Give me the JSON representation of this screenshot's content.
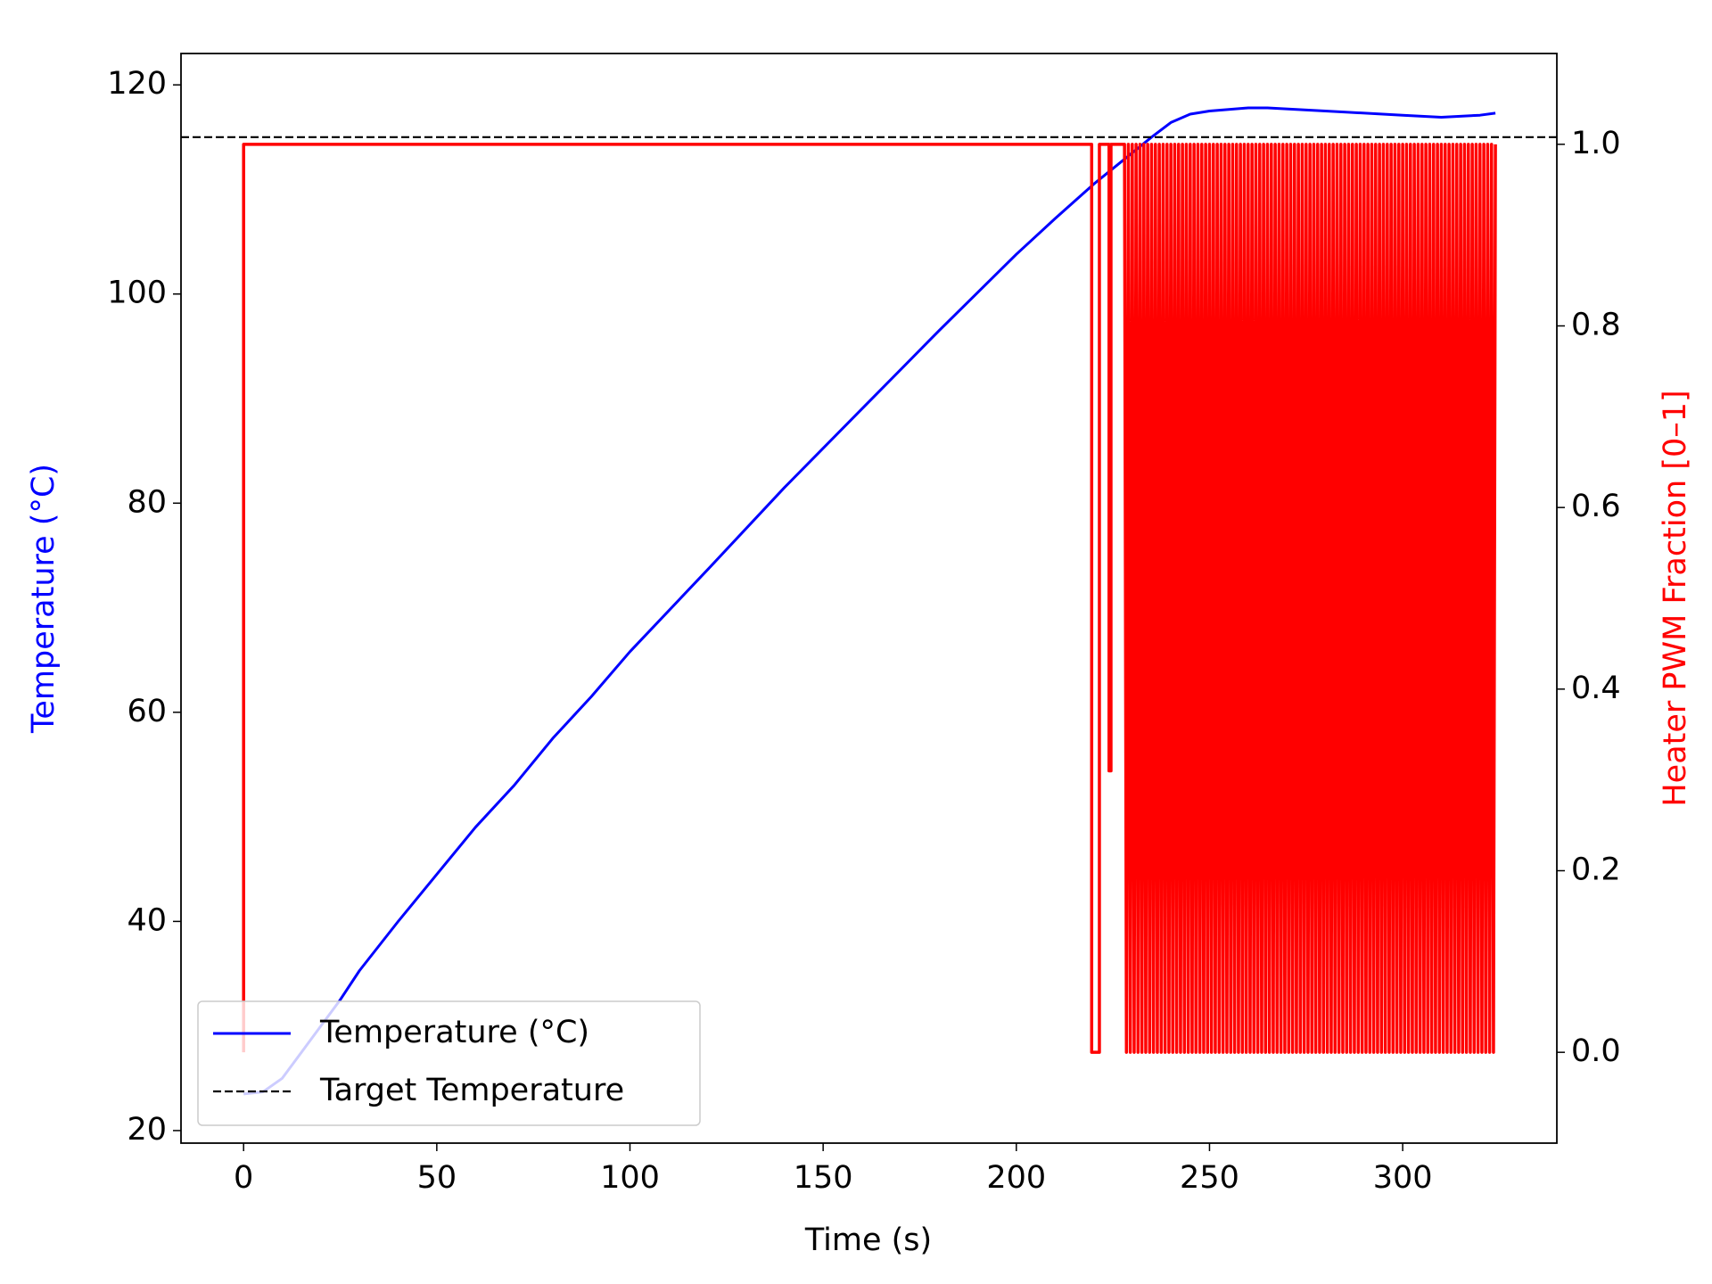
{
  "chart_data": {
    "type": "line",
    "xlabel": "Time (s)",
    "ylabel": "Temperature (°C)",
    "ylabel_color": "#0000ff",
    "y2label": "Heater PWM Fraction [0–1]",
    "y2label_color": "#ff0000",
    "xlim": [
      -16.2,
      339.9
    ],
    "ylim": [
      18.8,
      123.0
    ],
    "y2lim": [
      -0.1,
      1.1
    ],
    "xticks": [
      0,
      50,
      100,
      150,
      200,
      250,
      300
    ],
    "yticks": [
      20,
      40,
      60,
      80,
      100,
      120
    ],
    "y2ticks": [
      {
        "value": 0,
        "label": "0.0"
      },
      0.2,
      0.4,
      0.6,
      0.8,
      {
        "value": 1,
        "label": "1.0"
      }
    ],
    "legend": "lower left",
    "target": {
      "name": "Target Temperature",
      "value": 115,
      "color": "#000000",
      "linestyle": "dashed"
    },
    "series": [
      {
        "name": "Temperature (°C)",
        "color": "#0000ff",
        "x": [
          0,
          5,
          10,
          15,
          20,
          25,
          30,
          40,
          50,
          60,
          70,
          80,
          90,
          100,
          120,
          140,
          160,
          180,
          200,
          210,
          220,
          230,
          235,
          240,
          245,
          250,
          260,
          265,
          280,
          300,
          310,
          320,
          324
        ],
        "values": [
          23.5,
          23.7,
          25,
          27.5,
          30,
          32.5,
          35.3,
          40,
          44.5,
          49,
          53,
          57.5,
          61.5,
          65.8,
          73.6,
          81.5,
          89,
          96.5,
          103.8,
          107.2,
          110.5,
          113.5,
          115,
          116.4,
          117.2,
          117.5,
          117.8,
          117.8,
          117.5,
          117.1,
          116.9,
          117.1,
          117.3
        ]
      },
      {
        "color": "#ff0000",
        "axis": "y2",
        "x": [
          0,
          0,
          219.5,
          219.5,
          221.5,
          221.5,
          224,
          224,
          224.5,
          224.5,
          228,
          228.5,
          229,
          229.5,
          230,
          230.5,
          231,
          231.5,
          232,
          232.5,
          233,
          233.5,
          234,
          234.5,
          235,
          235.5,
          236,
          236.5,
          237,
          237.5,
          238,
          238.5,
          239,
          239.5,
          240,
          240.5,
          241,
          241.5,
          242,
          242.5,
          243,
          243.5,
          244,
          244.5,
          245,
          245.5,
          246,
          246.5,
          247,
          247.5,
          248,
          248.5,
          249,
          249.5,
          250,
          250.5,
          251,
          251.5,
          252,
          252.5,
          253,
          253.5,
          254,
          254.5,
          255,
          255.5,
          256,
          256.5,
          257,
          257.5,
          258,
          258.5,
          259,
          259.5,
          260,
          260.5,
          261,
          261.5,
          262,
          262.5,
          263,
          263.5,
          264,
          264.5,
          265,
          265.5,
          266,
          266.5,
          267,
          267.5,
          268,
          268.5,
          269,
          269.5,
          270,
          270.5,
          271,
          271.5,
          272,
          272.5,
          273,
          273.5,
          274,
          274.5,
          275,
          275.5,
          276,
          276.5,
          277,
          277.5,
          278,
          278.5,
          279,
          279.5,
          280,
          280.5,
          281,
          281.5,
          282,
          282.5,
          283,
          283.5,
          284,
          284.5,
          285,
          285.5,
          286,
          286.5,
          287,
          287.5,
          288,
          288.5,
          289,
          289.5,
          290,
          290.5,
          291,
          291.5,
          292,
          292.5,
          293,
          293.5,
          294,
          294.5,
          295,
          295.5,
          296,
          296.5,
          297,
          297.5,
          298,
          298.5,
          299,
          299.5,
          300,
          300.5,
          301,
          301.5,
          302,
          302.5,
          303,
          303.5,
          304,
          304.5,
          305,
          305.5,
          306,
          306.5,
          307,
          307.5,
          308,
          308.5,
          309,
          309.5,
          310,
          310.5,
          311,
          311.5,
          312,
          312.5,
          313,
          313.5,
          314,
          314.5,
          315,
          315.5,
          316,
          316.5,
          317,
          317.5,
          318,
          318.5,
          319,
          319.5,
          320,
          320.5,
          321,
          321.5,
          322,
          322.5,
          323,
          323.5,
          324
        ],
        "values": [
          0,
          1,
          1,
          0,
          0,
          1,
          1,
          0.31,
          0.31,
          1,
          1,
          0,
          1,
          0,
          1,
          0,
          1,
          0,
          1,
          0,
          1,
          0,
          1,
          0,
          1,
          0,
          1,
          0,
          1,
          0,
          1,
          0,
          1,
          0,
          1,
          0,
          1,
          0,
          1,
          0,
          1,
          0,
          1,
          0,
          1,
          0,
          1,
          0,
          1,
          0,
          1,
          0,
          1,
          0,
          1,
          0,
          1,
          0,
          1,
          0,
          1,
          0,
          1,
          0,
          1,
          0,
          1,
          0,
          1,
          0,
          1,
          0,
          1,
          0,
          1,
          0,
          1,
          0,
          1,
          0,
          1,
          0,
          1,
          0,
          1,
          0,
          1,
          0,
          1,
          0,
          1,
          0,
          1,
          0,
          1,
          0,
          1,
          0,
          1,
          0,
          1,
          0,
          1,
          0,
          1,
          0,
          1,
          0,
          1,
          0,
          1,
          0,
          1,
          0,
          1,
          0,
          1,
          0,
          1,
          0,
          1,
          0,
          1,
          0,
          1,
          0,
          1,
          0,
          1,
          0,
          1,
          0,
          1,
          0,
          1,
          0,
          1,
          0,
          1,
          0,
          1,
          0,
          1,
          0,
          1,
          0,
          1,
          0,
          1,
          0,
          1,
          0,
          1,
          0,
          1,
          0,
          1,
          0,
          1,
          0,
          1,
          0,
          1,
          0,
          1,
          0,
          1,
          0,
          1,
          0,
          1,
          0,
          1,
          0,
          1,
          0,
          1,
          0,
          1,
          0,
          1,
          0,
          1,
          0,
          1,
          0,
          1,
          0,
          1,
          0,
          1,
          0,
          1,
          0,
          1,
          0,
          1,
          0,
          1,
          0,
          1,
          0,
          1
        ]
      }
    ]
  }
}
